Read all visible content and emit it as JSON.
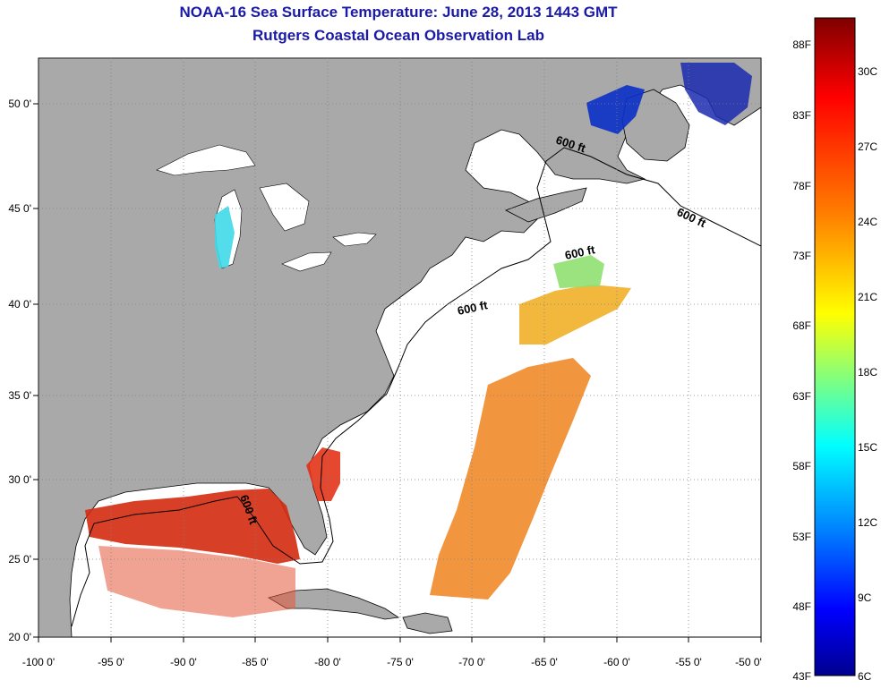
{
  "header": {
    "title": "NOAA-16 Sea Surface Temperature:  June 28, 2013 1443 GMT",
    "subtitle": "Rutgers Coastal Ocean Observation Lab"
  },
  "map": {
    "lon_range": [
      -100,
      -50
    ],
    "lat_range": [
      20,
      52.5
    ],
    "lon_ticks": [
      "-100 0'",
      "-95 0'",
      "-90 0'",
      "-85 0'",
      "-80 0'",
      "-75 0'",
      "-70 0'",
      "-65 0'",
      "-60 0'",
      "-55 0'",
      "-50 0'"
    ],
    "lat_ticks": [
      "20 0'",
      "25 0'",
      "30 0'",
      "35 0'",
      "40 0'",
      "45 0'",
      "50 0'"
    ],
    "contour_labels": [
      "600 ft",
      "600 ft",
      "600 ft",
      "600 ft",
      "600 ft"
    ],
    "colors": {
      "land": "#a9a9a9",
      "ocean_no_data": "#ffffff",
      "grid": "#808080"
    }
  },
  "colorbar": {
    "fahrenheit_labels": [
      "88F",
      "83F",
      "78F",
      "73F",
      "68F",
      "63F",
      "58F",
      "53F",
      "48F",
      "43F"
    ],
    "celsius_labels": [
      "30C",
      "27C",
      "24C",
      "21C",
      "18C",
      "15C",
      "12C",
      "9C",
      "6C"
    ],
    "range_c": [
      6,
      31
    ],
    "colormap": [
      "#7f0000",
      "#ff0000",
      "#ff8000",
      "#ffff00",
      "#80ff80",
      "#00ffff",
      "#0080ff",
      "#0000ff",
      "#00008f"
    ]
  }
}
